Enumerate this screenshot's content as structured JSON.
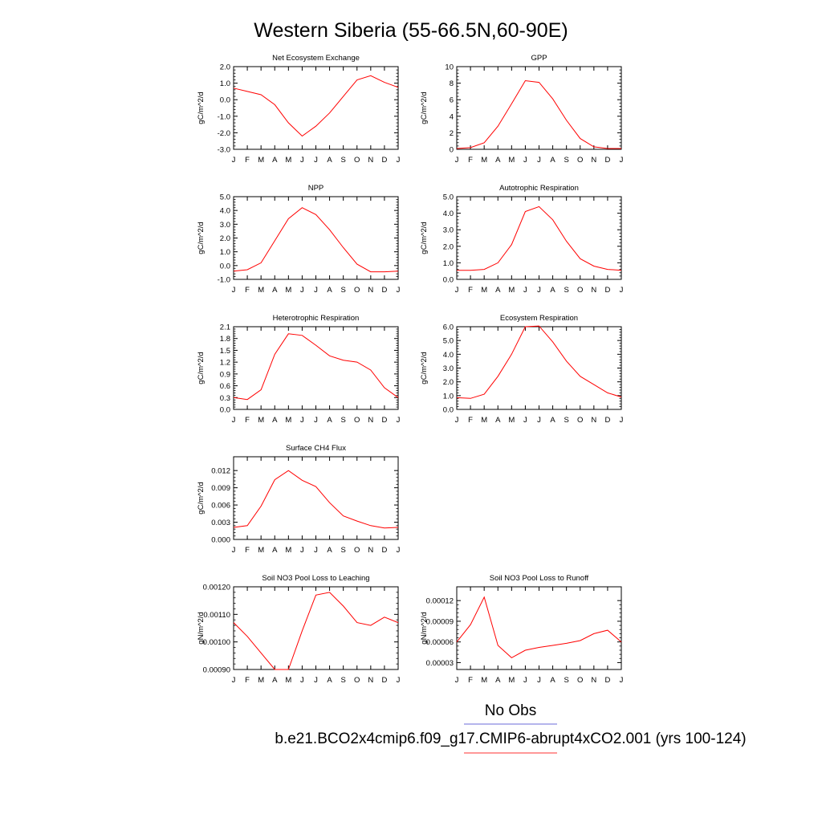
{
  "page": {
    "title": "Western Siberia (55-66.5N,60-90E)"
  },
  "legend": {
    "obs_label": "No Obs",
    "obs_color": "#6b6bd9",
    "model_label": "b.e21.BCO2x4cmip6.f09_g17.CMIP6-abrupt4xCO2.001 (yrs 100-124)",
    "model_color": "#ff3030"
  },
  "month_labels": [
    "J",
    "F",
    "M",
    "A",
    "M",
    "J",
    "J",
    "A",
    "S",
    "O",
    "N",
    "D",
    "J"
  ],
  "line_color": "#ff0000",
  "chart_data": [
    {
      "type": "line",
      "title": "Net Ecosystem Exchange",
      "ylabel": "gC/m^2/d",
      "ylim": [
        -3.0,
        2.0
      ],
      "yticks": [
        -3.0,
        -2.0,
        -1.0,
        0.0,
        1.0,
        2.0
      ],
      "ytick_labels": [
        "-3.0",
        "-2.0",
        "-1.0",
        "0.0",
        "1.0",
        "2.0"
      ],
      "values": [
        0.7,
        0.5,
        0.3,
        -0.3,
        -1.4,
        -2.2,
        -1.6,
        -0.8,
        0.2,
        1.2,
        1.45,
        1.05,
        0.75
      ]
    },
    {
      "type": "line",
      "title": "GPP",
      "ylabel": "gC/m^2/d",
      "ylim": [
        0,
        10
      ],
      "yticks": [
        0,
        2,
        4,
        6,
        8,
        10
      ],
      "ytick_labels": [
        "0",
        "2",
        "4",
        "6",
        "8",
        "10"
      ],
      "values": [
        0.1,
        0.2,
        0.8,
        2.8,
        5.5,
        8.3,
        8.1,
        6.1,
        3.5,
        1.3,
        0.3,
        0.1,
        0.1
      ]
    },
    {
      "type": "line",
      "title": "NPP",
      "ylabel": "gC/m^2/d",
      "ylim": [
        -1.0,
        5.0
      ],
      "yticks": [
        -1.0,
        0.0,
        1.0,
        2.0,
        3.0,
        4.0,
        5.0
      ],
      "ytick_labels": [
        "-1.0",
        "0.0",
        "1.0",
        "2.0",
        "3.0",
        "4.0",
        "5.0"
      ],
      "values": [
        -0.4,
        -0.3,
        0.2,
        1.8,
        3.4,
        4.2,
        3.7,
        2.6,
        1.3,
        0.1,
        -0.45,
        -0.45,
        -0.4
      ]
    },
    {
      "type": "line",
      "title": "Autotrophic Respiration",
      "ylabel": "gC/m^2/d",
      "ylim": [
        0.0,
        5.0
      ],
      "yticks": [
        0.0,
        1.0,
        2.0,
        3.0,
        4.0,
        5.0
      ],
      "ytick_labels": [
        "0.0",
        "1.0",
        "2.0",
        "3.0",
        "4.0",
        "5.0"
      ],
      "values": [
        0.55,
        0.55,
        0.6,
        1.0,
        2.1,
        4.1,
        4.4,
        3.6,
        2.3,
        1.25,
        0.8,
        0.6,
        0.55
      ]
    },
    {
      "type": "line",
      "title": "Heterotrophic Respiration",
      "ylabel": "gC/m^2/d",
      "ylim": [
        0.0,
        2.1
      ],
      "yticks": [
        0.0,
        0.3,
        0.6,
        0.9,
        1.2,
        1.5,
        1.8,
        2.1
      ],
      "ytick_labels": [
        "0.0",
        "0.3",
        "0.6",
        "0.9",
        "1.2",
        "1.5",
        "1.8",
        "2.1"
      ],
      "values": [
        0.3,
        0.25,
        0.5,
        1.4,
        1.92,
        1.88,
        1.63,
        1.36,
        1.25,
        1.2,
        1.0,
        0.55,
        0.3
      ]
    },
    {
      "type": "line",
      "title": "Ecosystem Respiration",
      "ylabel": "gC/m^2/d",
      "ylim": [
        0.0,
        6.0
      ],
      "yticks": [
        0.0,
        1.0,
        2.0,
        3.0,
        4.0,
        5.0,
        6.0
      ],
      "ytick_labels": [
        "0.0",
        "1.0",
        "2.0",
        "3.0",
        "4.0",
        "5.0",
        "6.0"
      ],
      "values": [
        0.85,
        0.8,
        1.1,
        2.4,
        4.0,
        6.0,
        6.05,
        4.9,
        3.5,
        2.4,
        1.8,
        1.2,
        0.9
      ]
    },
    {
      "type": "line",
      "title": "Surface CH4 Flux",
      "ylabel": "gC/m^2/d",
      "ylim": [
        0.0,
        0.0144
      ],
      "yticks": [
        0.0,
        0.003,
        0.006,
        0.009,
        0.012
      ],
      "ytick_labels": [
        "0.000",
        "0.003",
        "0.006",
        "0.009",
        "0.012"
      ],
      "values": [
        0.0021,
        0.0024,
        0.0058,
        0.0104,
        0.012,
        0.0103,
        0.0092,
        0.0064,
        0.0041,
        0.0032,
        0.0024,
        0.002,
        0.0021
      ]
    },
    {
      "type": "line",
      "title": "Soil NO3 Pool Loss to Leaching",
      "ylabel": "gN/m^2/d",
      "ylim": [
        0.0009,
        0.0012
      ],
      "yticks": [
        0.0009,
        0.001,
        0.0011,
        0.0012
      ],
      "ytick_labels": [
        "0.00090",
        "0.00100",
        "0.00110",
        "0.00120"
      ],
      "values": [
        0.00107,
        0.00102,
        0.00096,
        0.0009,
        0.0009,
        0.00104,
        0.00117,
        0.00118,
        0.00113,
        0.00107,
        0.00106,
        0.00109,
        0.00107
      ]
    },
    {
      "type": "line",
      "title": "Soil NO3 Pool Loss to Runoff",
      "ylabel": "gN/m^2/d",
      "ylim": [
        2e-05,
        0.00014
      ],
      "yticks": [
        3e-05,
        6e-05,
        9e-05,
        0.00012
      ],
      "ytick_labels": [
        "0.00003",
        "0.00006",
        "0.00009",
        "0.00012"
      ],
      "values": [
        6e-05,
        8.5e-05,
        0.000125,
        5.5e-05,
        3.7e-05,
        4.8e-05,
        5.2e-05,
        5.5e-05,
        5.8e-05,
        6.2e-05,
        7.2e-05,
        7.7e-05,
        6e-05
      ]
    }
  ]
}
